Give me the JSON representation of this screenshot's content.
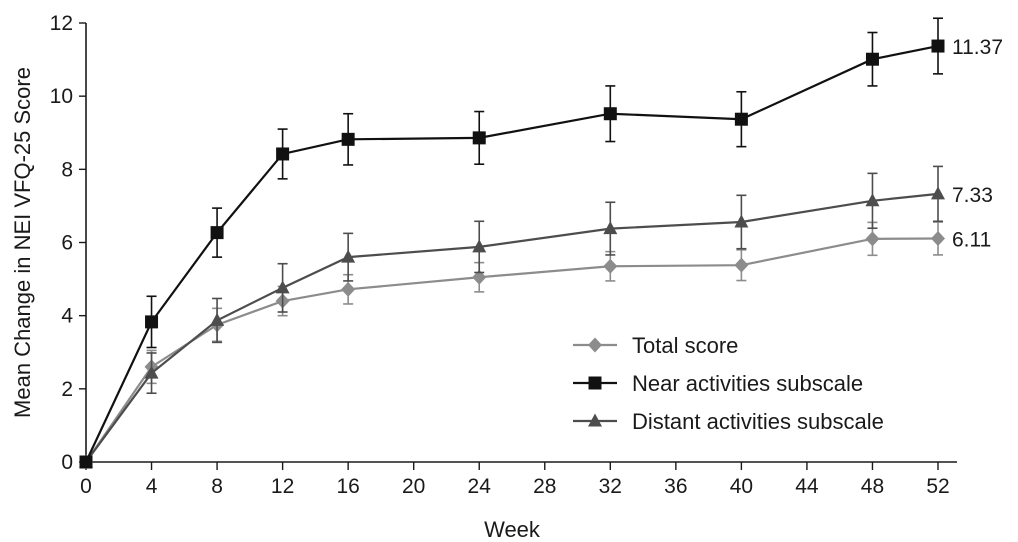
{
  "chart_data": {
    "type": "line",
    "title": "",
    "xlabel": "Week",
    "ylabel": "Mean Change in NEI VFQ-25 Score",
    "x": [
      0,
      4,
      8,
      12,
      16,
      24,
      32,
      40,
      48,
      52
    ],
    "xlim": [
      0,
      52
    ],
    "ylim": [
      0,
      12
    ],
    "x_ticks": [
      0,
      4,
      8,
      12,
      16,
      20,
      24,
      28,
      32,
      36,
      40,
      44,
      48,
      52
    ],
    "y_ticks": [
      0,
      2,
      4,
      6,
      8,
      10,
      12
    ],
    "grid": false,
    "legend_position": "lower-right",
    "series": [
      {
        "name": "Total score",
        "marker": "diamond",
        "color": "#8c8c8c",
        "values": [
          0,
          2.6,
          3.75,
          4.4,
          4.72,
          5.05,
          5.35,
          5.38,
          6.1,
          6.11
        ],
        "error": [
          0,
          0.45,
          0.45,
          0.4,
          0.4,
          0.4,
          0.4,
          0.42,
          0.45,
          0.45
        ],
        "end_label": "6.11"
      },
      {
        "name": "Near activities subscale",
        "marker": "square",
        "color": "#111111",
        "values": [
          0,
          3.83,
          6.27,
          8.42,
          8.82,
          8.86,
          9.52,
          9.37,
          11.01,
          11.37
        ],
        "error": [
          0,
          0.7,
          0.67,
          0.68,
          0.7,
          0.72,
          0.76,
          0.75,
          0.73,
          0.76
        ],
        "end_label": "11.37"
      },
      {
        "name": "Distant activities subscale",
        "marker": "triangle",
        "color": "#4d4d4d",
        "values": [
          0,
          2.43,
          3.87,
          4.76,
          5.6,
          5.88,
          6.38,
          6.56,
          7.14,
          7.33
        ],
        "error": [
          0,
          0.55,
          0.6,
          0.66,
          0.65,
          0.7,
          0.72,
          0.73,
          0.75,
          0.75
        ],
        "end_label": "7.33"
      }
    ]
  }
}
